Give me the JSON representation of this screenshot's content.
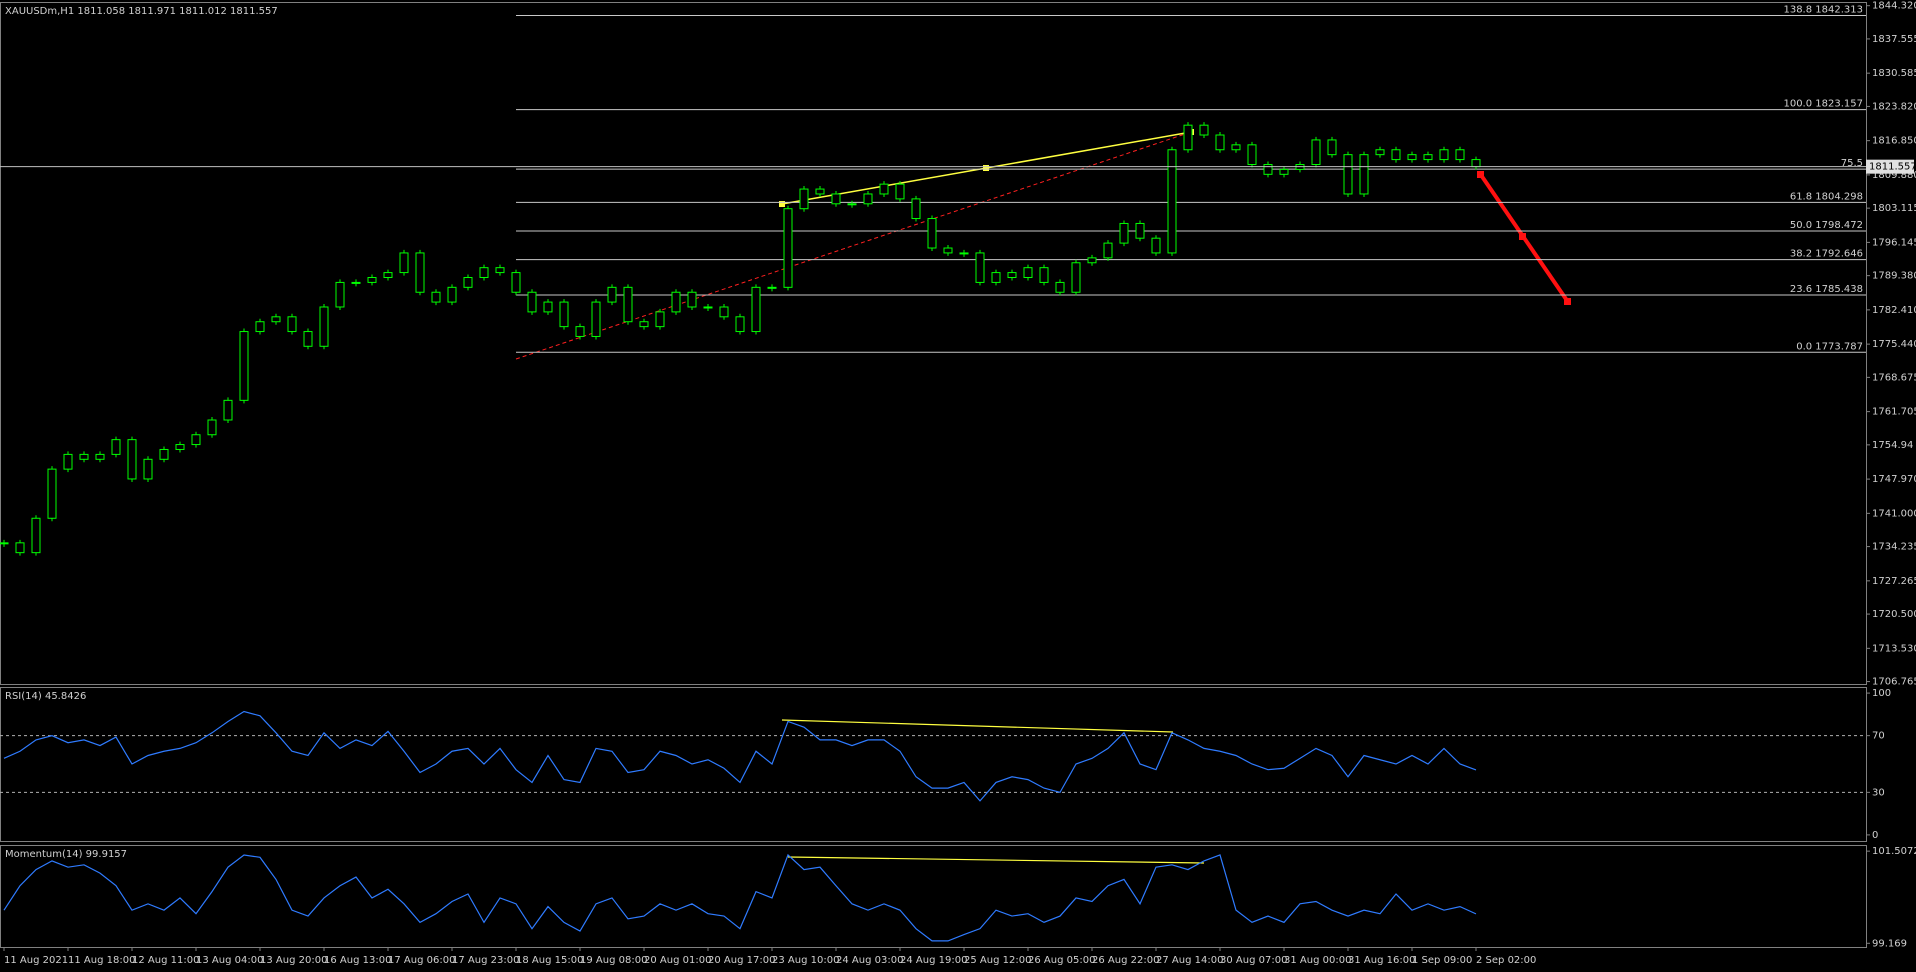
{
  "chart_data": [
    {
      "type": "candlestick",
      "title": "XAUUSDm,H1  1811.058 1811.971 1811.012 1811.557",
      "color": "#00ff00",
      "categories": [
        "11 Aug 2021",
        null,
        null,
        null,
        "11 Aug 18:00",
        null,
        null,
        null,
        "12 Aug 11:00",
        null,
        null,
        null,
        "13 Aug 04:00",
        null,
        null,
        null,
        "13 Aug 20:00",
        null,
        null,
        null,
        "16 Aug 13:00",
        null,
        null,
        null,
        "17 Aug 06:00",
        null,
        null,
        null,
        "17 Aug 23:00",
        null,
        null,
        null,
        "18 Aug 15:00",
        null,
        null,
        null,
        "19 Aug 08:00",
        null,
        null,
        null,
        "20 Aug 01:00",
        null,
        null,
        null,
        "20 Aug 17:00",
        null,
        null,
        null,
        "23 Aug 10:00",
        null,
        null,
        null,
        "24 Aug 03:00",
        null,
        null,
        null,
        "24 Aug 19:00",
        null,
        null,
        null,
        "25 Aug 12:00",
        null,
        null,
        null,
        "26 Aug 05:00",
        null,
        null,
        null,
        "26 Aug 22:00",
        null,
        null,
        null,
        "27 Aug 14:00",
        null,
        null,
        null,
        "30 Aug 07:00",
        null,
        null,
        null,
        "31 Aug 00:00",
        null,
        null,
        null,
        "31 Aug 16:00",
        null,
        null,
        null,
        "1 Sep 09:00",
        null,
        null,
        null,
        "2 Sep 02:00"
      ],
      "close": [
        1735,
        1733,
        1740,
        1750,
        1753,
        1752,
        1753,
        1756,
        1748,
        1752,
        1754,
        1755,
        1757,
        1760,
        1764,
        1778,
        1780,
        1781,
        1778,
        1775,
        1783,
        1788,
        1788,
        1789,
        1790,
        1794,
        1786,
        1784,
        1787,
        1789,
        1791,
        1790,
        1786,
        1782,
        1784,
        1779,
        1777,
        1784,
        1787,
        1780,
        1779,
        1782,
        1786,
        1783,
        1783,
        1781,
        1778,
        1787,
        1787,
        1803,
        1807,
        1806,
        1804,
        1804,
        1806,
        1808,
        1805,
        1801,
        1795,
        1794,
        1794,
        1788,
        1790,
        1789,
        1791,
        1788,
        1786,
        1792,
        1793,
        1796,
        1800,
        1797,
        1794,
        1815,
        1820,
        1818,
        1815,
        1816,
        1812,
        1810,
        1811,
        1812,
        1817,
        1814,
        1806,
        1814,
        1815,
        1813,
        1814,
        1813,
        1815,
        1813,
        1811.557
      ],
      "ylim": [
        1706.27,
        1845.07
      ],
      "yticks": [
        {
          "value": 1844.32,
          "label": "1844.320"
        },
        1837.555,
        1830.585,
        {
          "value": 1823.82,
          "label": "1823.820"
        },
        {
          "value": 1816.85,
          "label": "1816.850"
        },
        {
          "value": 1809.88,
          "label": "1809.880"
        },
        1803.115,
        1796.145,
        {
          "value": 1789.38,
          "label": "1789.380"
        },
        {
          "value": 1782.41,
          "label": "1782.410"
        },
        {
          "value": 1775.44,
          "label": "1775.440"
        },
        1768.675,
        1761.705,
        1754.94,
        {
          "value": 1747.97,
          "label": "1747.970"
        },
        {
          "value": 1741.0,
          "label": "1741.000"
        },
        1734.235,
        1727.265,
        {
          "value": 1720.5,
          "label": "1720.500"
        },
        {
          "value": 1713.53,
          "label": "1713.530"
        },
        1706.765
      ],
      "levels": [
        {
          "value": 1842.313,
          "label": "138.8 1842.313"
        },
        {
          "value": 1823.157,
          "label": "100.0 1823.157"
        },
        {
          "value": 1811.06,
          "label": "75.5"
        },
        {
          "value": 1804.298,
          "label": "61.8 1804.298"
        },
        {
          "value": 1798.472,
          "label": "50.0 1798.472"
        },
        {
          "value": 1792.646,
          "label": "38.2 1792.646"
        },
        {
          "value": 1785.438,
          "label": "23.6 1785.438"
        },
        {
          "value": 1773.787,
          "label": "0.0 1773.787"
        }
      ]
    },
    {
      "type": "line",
      "title": "RSI(14) 45.8426",
      "color": "#2f7bff",
      "values": [
        54,
        59,
        67,
        70,
        65,
        67,
        63,
        69,
        50,
        56,
        59,
        61,
        65,
        72,
        80,
        87,
        84,
        72,
        59,
        56,
        72,
        61,
        67,
        63,
        73,
        59,
        44,
        50,
        59,
        61,
        50,
        61,
        46,
        37,
        56,
        39,
        37,
        61,
        59,
        44,
        46,
        59,
        56,
        50,
        53,
        47,
        37,
        59,
        50,
        80,
        76,
        67,
        67,
        63,
        67,
        67,
        59,
        41,
        33,
        33,
        37,
        24,
        37,
        41,
        39,
        33,
        30,
        50,
        54,
        61,
        72,
        50,
        46,
        72,
        67,
        61,
        59,
        56,
        50,
        46,
        47,
        54,
        61,
        56,
        41,
        56,
        53,
        50,
        56,
        50,
        61,
        50,
        45.8426
      ],
      "ylim": [
        -4.3,
        104.3
      ],
      "yticks": [
        100,
        70,
        30,
        0
      ],
      "levels": [
        70,
        30
      ]
    },
    {
      "type": "line",
      "title": "Momentum(14) 99.9157",
      "color": "#2f7bff",
      "values": [
        100.01,
        100.63,
        101.04,
        101.26,
        101.1,
        101.16,
        100.95,
        100.63,
        100.01,
        100.17,
        100.01,
        100.32,
        99.92,
        100.48,
        101.1,
        101.41,
        101.35,
        100.79,
        100.01,
        99.86,
        100.32,
        100.63,
        100.85,
        100.32,
        100.54,
        100.17,
        99.7,
        99.92,
        100.23,
        100.42,
        99.7,
        100.32,
        100.17,
        99.54,
        100.1,
        99.7,
        99.48,
        100.17,
        100.32,
        99.79,
        99.86,
        100.17,
        100.01,
        100.17,
        99.92,
        99.86,
        99.54,
        100.48,
        100.32,
        101.41,
        101.04,
        101.1,
        100.63,
        100.17,
        100.01,
        100.17,
        100.01,
        99.54,
        99.23,
        99.23,
        99.39,
        99.54,
        100.01,
        99.86,
        99.92,
        99.7,
        99.86,
        100.32,
        100.23,
        100.63,
        100.79,
        100.17,
        101.1,
        101.16,
        101.04,
        101.26,
        101.41,
        100.01,
        99.7,
        99.86,
        99.7,
        100.17,
        100.23,
        100.01,
        99.86,
        100.01,
        99.92,
        100.42,
        100.01,
        100.17,
        100.01,
        100.1,
        99.9157
      ],
      "ylim": [
        99.075,
        101.663
      ],
      "yticks": [
        101.5072,
        99.169
      ]
    }
  ]
}
